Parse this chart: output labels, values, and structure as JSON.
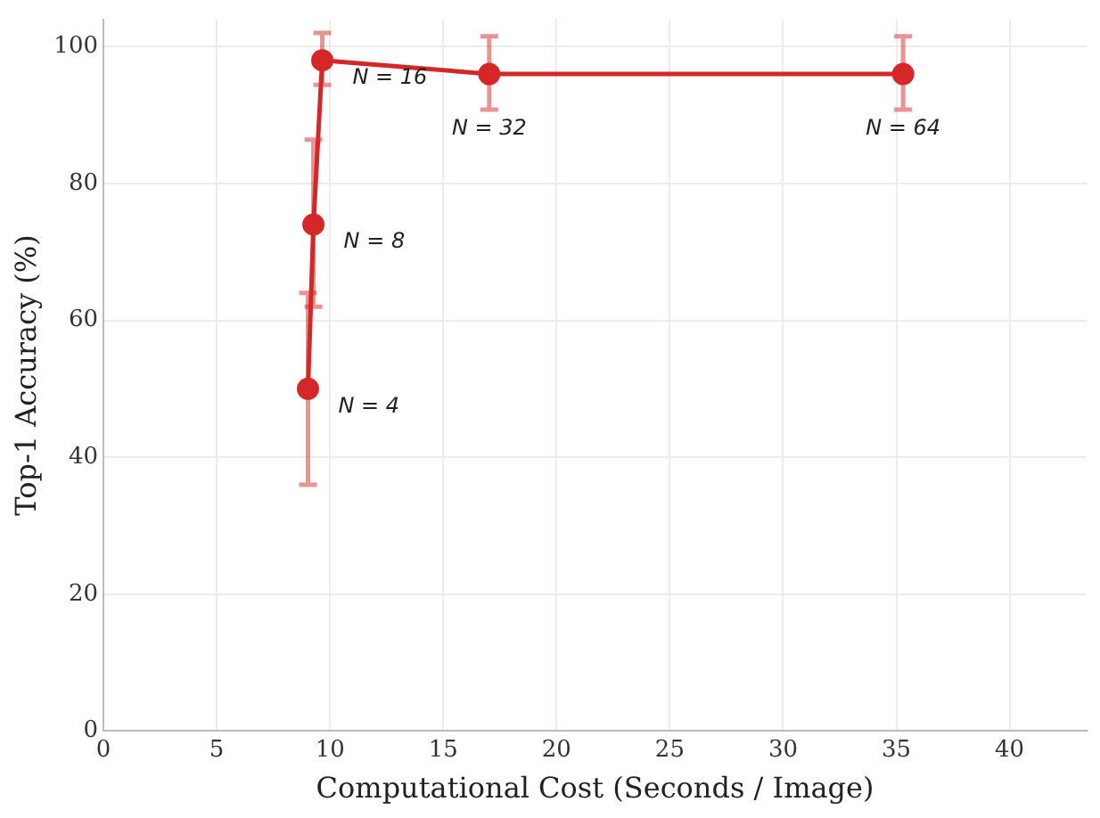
{
  "chart_data": {
    "type": "line",
    "xlabel": "Computational Cost (Seconds / Image)",
    "ylabel": "Top-1 Accuracy (%)",
    "x": [
      9.03,
      9.27,
      9.66,
      17.03,
      35.3
    ],
    "series": [
      {
        "color": "#d62728",
        "values": [
          50,
          74,
          98,
          96,
          96
        ],
        "errors": [
          [
            36,
            64
          ],
          [
            62,
            86.4
          ],
          [
            94.4,
            102
          ],
          [
            90.8,
            101.5
          ],
          [
            90.8,
            101.5
          ]
        ]
      }
    ],
    "xlim": [
      0,
      43.4
    ],
    "xticks": [
      0,
      5,
      10,
      15,
      20,
      25,
      30,
      35,
      40
    ],
    "ylim": [
      0,
      104
    ],
    "yticks": [
      0,
      20,
      40,
      60,
      80,
      100
    ],
    "grid": true,
    "legend": false,
    "marker": "circle",
    "line_style": "solid",
    "annotations": [
      {
        "text": "N = 4",
        "x": 9.03,
        "y": 50
      },
      {
        "text": "N = 8",
        "x": 9.27,
        "y": 74
      },
      {
        "text": "N = 16",
        "x": 9.66,
        "y": 98
      },
      {
        "text": "N = 32",
        "x": 17.03,
        "y": 96
      },
      {
        "text": "N = 64",
        "x": 35.3,
        "y": 96
      }
    ]
  }
}
